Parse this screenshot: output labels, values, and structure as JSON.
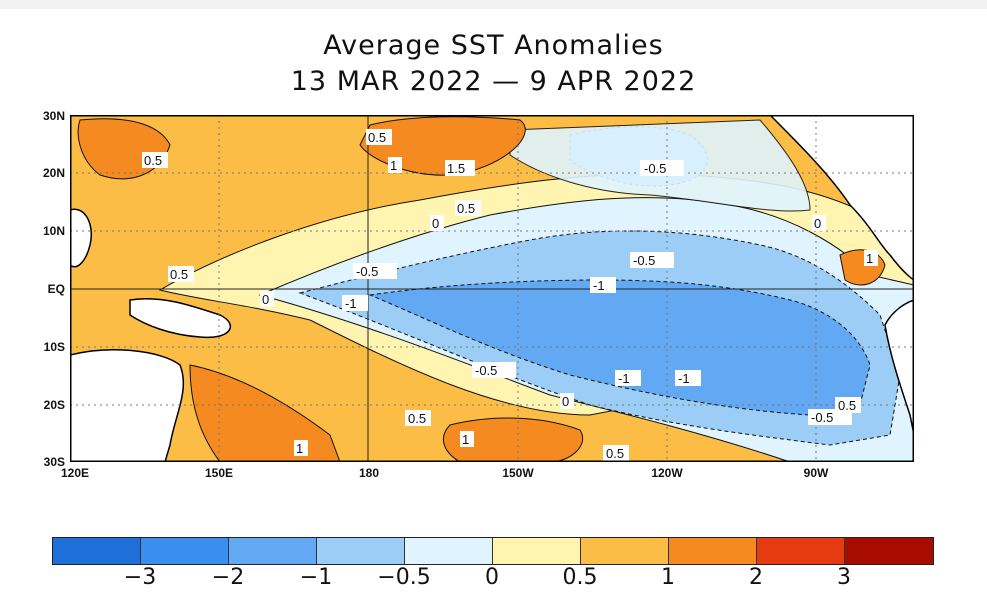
{
  "title_line1": "Average SST Anomalies",
  "title_line2": "13 MAR 2022 — 9 APR 2022",
  "lat_labels": [
    "30N",
    "20N",
    "10N",
    "EQ",
    "10S",
    "20S",
    "30S"
  ],
  "lon_labels": [
    "120E",
    "150E",
    "180",
    "150W",
    "120W",
    "90W"
  ],
  "contour_labels": [
    "0.5",
    "0.5",
    "1",
    "1.5",
    "0.5",
    "0",
    "-0.5",
    "0.5",
    "-0.5",
    "-1",
    "-0.5",
    "-1",
    "0",
    "-0.5",
    "-1",
    "-1",
    "0",
    "0.5",
    "1",
    "1",
    "0.5",
    "-0.5",
    "0.5",
    "0",
    "1"
  ],
  "colorbar": {
    "colors": [
      "#1e6fd9",
      "#3a8ef0",
      "#62a8f2",
      "#9ccdf6",
      "#dff4ff",
      "#fff4b0",
      "#fbbd45",
      "#f58a20",
      "#e63a10",
      "#a80c00"
    ],
    "tick_labels": [
      "−3",
      "−2",
      "−1",
      "−0.5",
      "0",
      "0.5",
      "1",
      "2",
      "3"
    ]
  },
  "map": {
    "land_color": "#ffffff",
    "coastline_color": "#000000",
    "grid": "dotted"
  }
}
